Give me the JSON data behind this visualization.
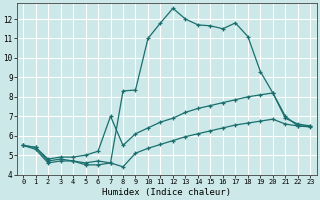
{
  "xlabel": "Humidex (Indice chaleur)",
  "background_color": "#cce8e8",
  "grid_color": "#ffffff",
  "line_color": "#1a6e6e",
  "xlim": [
    -0.5,
    23.5
  ],
  "ylim": [
    4,
    12.8
  ],
  "yticks": [
    4,
    5,
    6,
    7,
    8,
    9,
    10,
    11,
    12
  ],
  "xticks": [
    0,
    1,
    2,
    3,
    4,
    5,
    6,
    7,
    8,
    9,
    10,
    11,
    12,
    13,
    14,
    15,
    16,
    17,
    18,
    19,
    20,
    21,
    22,
    23
  ],
  "line1_x": [
    0,
    1,
    2,
    3,
    4,
    5,
    6,
    7,
    8,
    9,
    10,
    11,
    12,
    13,
    14,
    15,
    16,
    17,
    18,
    19,
    20,
    21,
    22,
    23
  ],
  "line1_y": [
    5.5,
    5.3,
    4.6,
    4.7,
    4.7,
    4.5,
    4.5,
    4.6,
    8.3,
    8.35,
    11.0,
    11.8,
    12.55,
    12.0,
    11.7,
    11.65,
    11.5,
    11.8,
    11.1,
    9.3,
    8.2,
    7.0,
    6.5,
    6.5
  ],
  "line2_x": [
    0,
    1,
    2,
    3,
    4,
    5,
    6,
    7,
    8,
    9,
    10,
    11,
    12,
    13,
    14,
    15,
    16,
    17,
    18,
    19,
    20,
    21,
    22,
    23
  ],
  "line2_y": [
    5.5,
    5.4,
    4.8,
    4.9,
    4.9,
    5.0,
    5.2,
    7.0,
    5.5,
    6.1,
    6.4,
    6.7,
    6.9,
    7.2,
    7.4,
    7.55,
    7.7,
    7.85,
    8.0,
    8.1,
    8.2,
    6.9,
    6.6,
    6.5
  ],
  "line3_x": [
    0,
    1,
    2,
    3,
    4,
    5,
    6,
    7,
    8,
    9,
    10,
    11,
    12,
    13,
    14,
    15,
    16,
    17,
    18,
    19,
    20,
    21,
    22,
    23
  ],
  "line3_y": [
    5.5,
    5.4,
    4.7,
    4.8,
    4.7,
    4.6,
    4.7,
    4.6,
    4.4,
    5.1,
    5.35,
    5.55,
    5.75,
    5.95,
    6.1,
    6.25,
    6.4,
    6.55,
    6.65,
    6.75,
    6.85,
    6.6,
    6.5,
    6.45
  ]
}
